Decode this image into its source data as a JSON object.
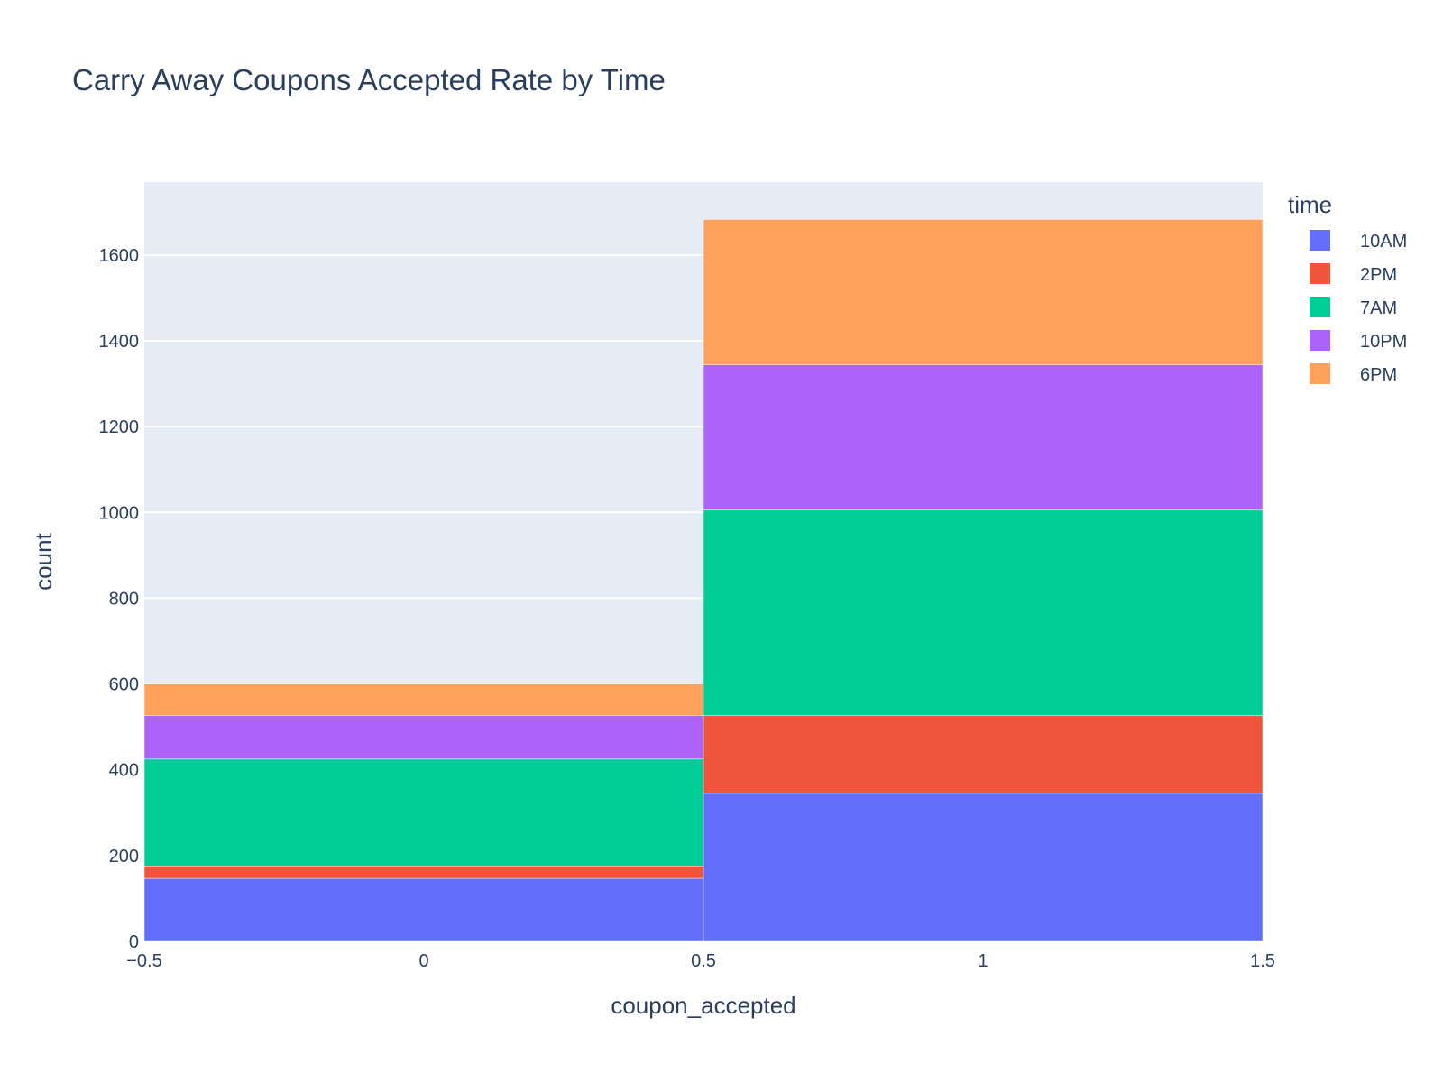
{
  "chart_data": {
    "type": "bar",
    "stacked": true,
    "title": "Carry Away Coupons Accepted Rate by Time",
    "xlabel": "coupon_accepted",
    "ylabel": "count",
    "xlim": [
      -0.5,
      1.5
    ],
    "ylim": [
      0,
      1770
    ],
    "x_ticks": [
      -0.5,
      0,
      0.5,
      1,
      1.5
    ],
    "x_tick_labels": [
      "−0.5",
      "0",
      "0.5",
      "1",
      "1.5"
    ],
    "y_ticks": [
      0,
      200,
      400,
      600,
      800,
      1000,
      1200,
      1400,
      1600
    ],
    "bins": [
      [
        -0.5,
        0.5
      ],
      [
        0.5,
        1.5
      ]
    ],
    "grid": true,
    "legend_title": "time",
    "legend_position": "top-right",
    "series": [
      {
        "name": "10AM",
        "color": "#636efa",
        "values": [
          147,
          345
        ]
      },
      {
        "name": "2PM",
        "color": "#ef553b",
        "values": [
          29,
          181
        ]
      },
      {
        "name": "7AM",
        "color": "#00cc96",
        "values": [
          249,
          480
        ]
      },
      {
        "name": "10PM",
        "color": "#ab63fa",
        "values": [
          101,
          338
        ]
      },
      {
        "name": "6PM",
        "color": "#ffa15a",
        "values": [
          74,
          339
        ]
      }
    ]
  }
}
